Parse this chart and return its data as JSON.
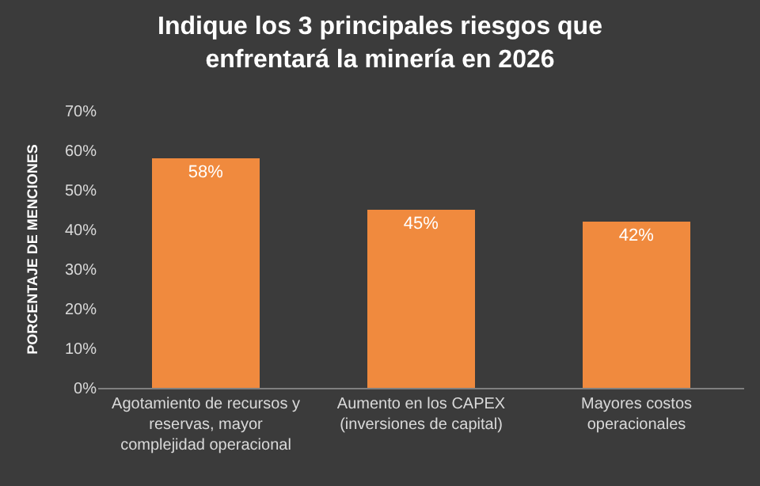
{
  "chart_data": {
    "type": "bar",
    "title": "Indique los 3 principales riesgos que enfrentará la minería en 2026",
    "ylabel": "PORCENTAJE DE MENCIONES",
    "categories": [
      "Agotamiento de recursos y reservas, mayor complejidad operacional",
      "Aumento en los CAPEX (inversiones de capital)",
      "Mayores costos operacionales"
    ],
    "values": [
      58,
      45,
      42
    ],
    "value_labels": [
      "58%",
      "45%",
      "42%"
    ],
    "color": "#f08a3e",
    "ylim": [
      0,
      70
    ],
    "yticks": [
      {
        "value": 0,
        "label": "0%"
      },
      {
        "value": 10,
        "label": "10%"
      },
      {
        "value": 20,
        "label": "20%"
      },
      {
        "value": 30,
        "label": "30%"
      },
      {
        "value": 40,
        "label": "40%"
      },
      {
        "value": 50,
        "label": "50%"
      },
      {
        "value": 60,
        "label": "60%"
      },
      {
        "value": 70,
        "label": "70%"
      }
    ],
    "grid": false
  }
}
